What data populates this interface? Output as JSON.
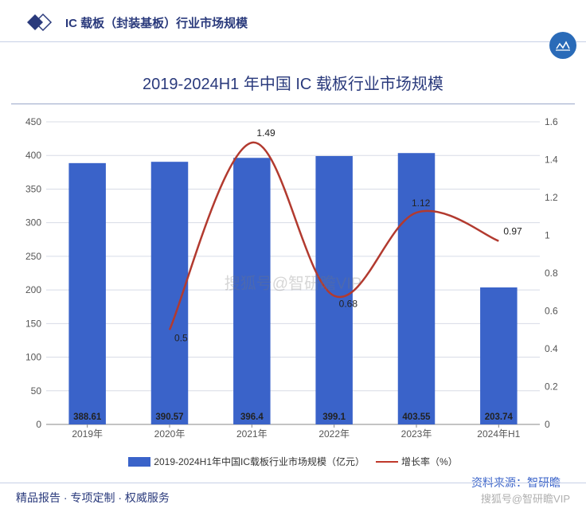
{
  "header": {
    "title": "IC 载板（封装基板）行业市场规模"
  },
  "chart": {
    "type": "bar+line",
    "title": "2019-2024H1 年中国 IC 载板行业市场规模",
    "categories": [
      "2019年",
      "2020年",
      "2021年",
      "2022年",
      "2023年",
      "2024年H1"
    ],
    "bar": {
      "series_label": "2019-2024H1年中国IC载板行业市场规模（亿元）",
      "values": [
        388.61,
        390.57,
        396.4,
        399.1,
        403.55,
        203.74
      ],
      "color": "#3a63c9",
      "y_axis": {
        "min": 0,
        "max": 450,
        "step": 50
      },
      "bar_width_ratio": 0.45
    },
    "line": {
      "series_label": "增长率（%）",
      "points": [
        {
          "x": "2020年",
          "y": 0.5
        },
        {
          "x": "2021年",
          "y": 1.49
        },
        {
          "x": "2022年",
          "y": 0.68
        },
        {
          "x": "2023年",
          "y": 1.12
        },
        {
          "x": "2024年H1",
          "y": 0.97
        }
      ],
      "color": "#b23a2f",
      "line_width": 2.5,
      "y_axis": {
        "min": 0,
        "max": 1.6,
        "step": 0.2
      }
    },
    "grid_color": "#d8dce6",
    "axis_color": "#999",
    "background": "#ffffff",
    "legend_position": "bottom"
  },
  "source": {
    "prefix": "资料来源：",
    "name": "智研瞻"
  },
  "footer": {
    "left": "精品报告 ·  专项定制 · 权威服务",
    "right": "搜狐号@智研瞻VIP"
  },
  "watermark": "搜狐号@智研瞻VIP",
  "colors": {
    "brand_blue": "#2a3a7c",
    "bar_blue": "#3a63c9",
    "line_red": "#b23a2f",
    "grid": "#d8dce6",
    "divider": "#c7d0e6"
  }
}
